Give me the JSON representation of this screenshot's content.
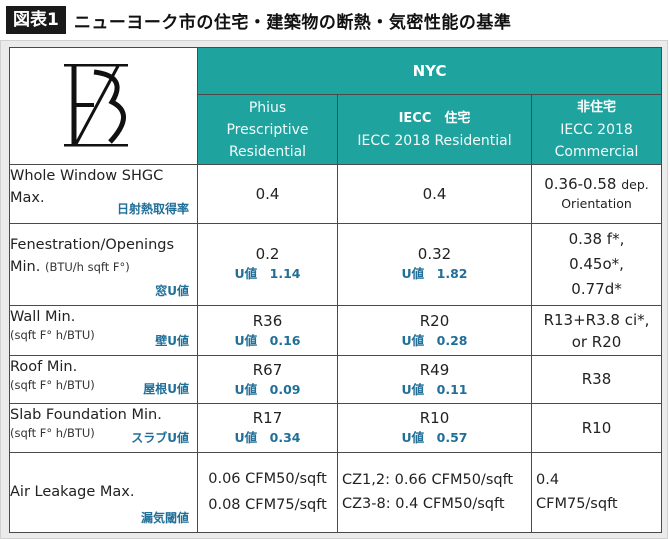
{
  "figure": {
    "label": "図表1",
    "title": "ニューヨーク市の住宅・建築物の断熱・気密性能の基準"
  },
  "header": {
    "nyc": "NYC",
    "columns": [
      {
        "line1": "Phius",
        "line2": "Prescriptive",
        "line3": "Residential"
      },
      {
        "line1": "IECC　住宅",
        "line2": "IECC 2018 Residential"
      },
      {
        "line1": "非住宅",
        "line2": "IECC 2018",
        "line3": "Commercial"
      }
    ]
  },
  "rows": [
    {
      "label": "Whole Window SHGC",
      "label2": "Max.",
      "unit": "",
      "jp": "日射熱取得率",
      "phius": "0.4",
      "phius_u": "",
      "iecc_res": "0.4",
      "iecc_res_u": "",
      "iecc_com": "0.36-0.58",
      "iecc_com_note": "dep.",
      "iecc_com_2": "Orientation"
    },
    {
      "label": "Fenestration/Openings",
      "label2": "Min.",
      "unit": "(BTU/h sqft F°)",
      "jp": "窓U値",
      "phius": "0.2",
      "phius_u": "U値　1.14",
      "iecc_res": "0.32",
      "iecc_res_u": "U値　1.82",
      "iecc_com": "0.38 f*,",
      "iecc_com_2": "0.45o*,",
      "iecc_com_3": "0.77d*"
    },
    {
      "label": "Wall Min.",
      "unit": "(sqft F° h/BTU)",
      "jp": "壁U値",
      "phius": "R36",
      "phius_u": "U値　0.16",
      "iecc_res": "R20",
      "iecc_res_u": "U値　0.28",
      "iecc_com": "R13+R3.8 ci*,",
      "iecc_com_2": "or R20"
    },
    {
      "label": "Roof Min.",
      "unit": "(sqft F° h/BTU)",
      "jp": "屋根U値",
      "phius": "R67",
      "phius_u": "U値　0.09",
      "iecc_res": "R49",
      "iecc_res_u": "U値　0.11",
      "iecc_com": "R38"
    },
    {
      "label": "Slab Foundation Min.",
      "unit": "(sqft F° h/BTU)",
      "jp": "スラブU値",
      "phius": "R17",
      "phius_u": "U値　0.34",
      "iecc_res": "R10",
      "iecc_res_u": "U値　0.57",
      "iecc_com": "R10"
    },
    {
      "label": "Air Leakage Max.",
      "jp": "漏気閾値",
      "phius": "0.06 CFM50/sqft",
      "phius_2": "0.08 CFM75/sqft",
      "iecc_res": "CZ1,2: 0.66 CFM50/sqft",
      "iecc_res_2": "CZ3-8: 0.4 CFM50/sqft",
      "iecc_com": "0.4",
      "iecc_com_2": "CFM75/sqft"
    }
  ],
  "colors": {
    "header_teal": "#1fa39e",
    "jp_blue": "#1f6f99"
  }
}
